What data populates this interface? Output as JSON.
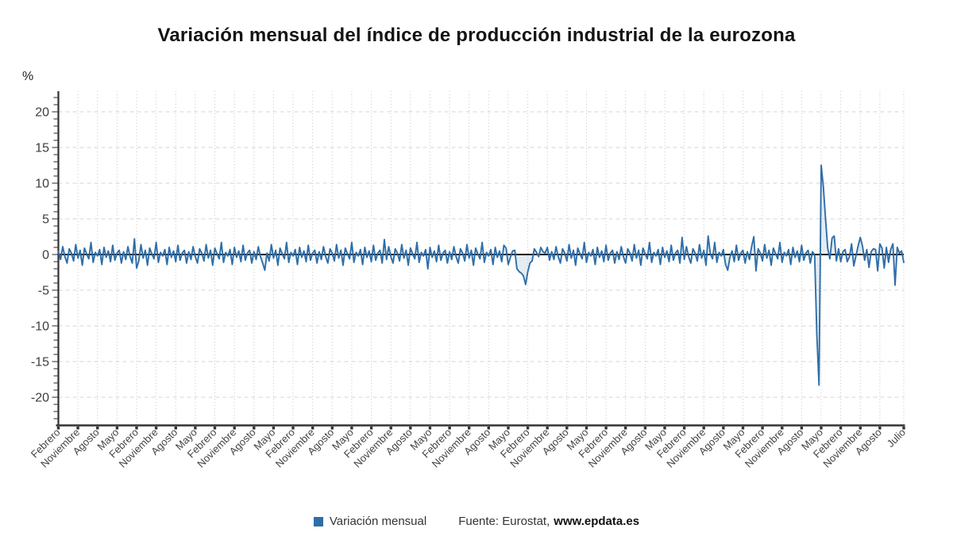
{
  "title": "Variación mensual del índice de producción industrial de la eurozona",
  "legend": {
    "series_label": "Variación mensual"
  },
  "source": {
    "prefix": "Fuente: Eurostat,",
    "site": "www.epdata.es"
  },
  "colors": {
    "line": "#2f6ea7",
    "fill": "#2f6ea7",
    "zero_line": "#1a1a1a",
    "grid_vertical": "#c9c9c9",
    "grid_horizontal": "#d6d6d6",
    "axis": "#333333",
    "tick_label": "#3d3d3d",
    "x_label": "#444444"
  },
  "chart_data": {
    "type": "line",
    "title": "Variación mensual del índice de producción industrial de la eurozona",
    "ylabel": "%",
    "ylim": [
      -24,
      22.9
    ],
    "grid": true,
    "legend_position": "bottom",
    "y_ticks": [
      20,
      15,
      10,
      5,
      0,
      -5,
      -10,
      -15,
      -20
    ],
    "x_tick_labels": [
      {
        "i": 0,
        "label": "Febrero"
      },
      {
        "i": 9,
        "label": "Noviembre"
      },
      {
        "i": 18,
        "label": "Agosto"
      },
      {
        "i": 27,
        "label": "Mayo"
      },
      {
        "i": 36,
        "label": "Febrero"
      },
      {
        "i": 45,
        "label": "Noviembre"
      },
      {
        "i": 54,
        "label": "Agosto"
      },
      {
        "i": 63,
        "label": "Mayo"
      },
      {
        "i": 72,
        "label": "Febrero"
      },
      {
        "i": 81,
        "label": "Noviembre"
      },
      {
        "i": 90,
        "label": "Agosto"
      },
      {
        "i": 99,
        "label": "Mayo"
      },
      {
        "i": 108,
        "label": "Febrero"
      },
      {
        "i": 117,
        "label": "Noviembre"
      },
      {
        "i": 126,
        "label": "Agosto"
      },
      {
        "i": 135,
        "label": "Mayo"
      },
      {
        "i": 144,
        "label": "Febrero"
      },
      {
        "i": 153,
        "label": "Noviembre"
      },
      {
        "i": 162,
        "label": "Agosto"
      },
      {
        "i": 171,
        "label": "Mayo"
      },
      {
        "i": 180,
        "label": "Febrero"
      },
      {
        "i": 189,
        "label": "Noviembre"
      },
      {
        "i": 198,
        "label": "Agosto"
      },
      {
        "i": 207,
        "label": "Mayo"
      },
      {
        "i": 216,
        "label": "Febrero"
      },
      {
        "i": 225,
        "label": "Noviembre"
      },
      {
        "i": 234,
        "label": "Agosto"
      },
      {
        "i": 243,
        "label": "Mayo"
      },
      {
        "i": 252,
        "label": "Febrero"
      },
      {
        "i": 261,
        "label": "Noviembre"
      },
      {
        "i": 270,
        "label": "Agosto"
      },
      {
        "i": 279,
        "label": "Mayo"
      },
      {
        "i": 288,
        "label": "Febrero"
      },
      {
        "i": 297,
        "label": "Noviembre"
      },
      {
        "i": 306,
        "label": "Agosto"
      },
      {
        "i": 315,
        "label": "Mayo"
      },
      {
        "i": 324,
        "label": "Febrero"
      },
      {
        "i": 333,
        "label": "Noviembre"
      },
      {
        "i": 342,
        "label": "Agosto"
      },
      {
        "i": 351,
        "label": "Mayo"
      },
      {
        "i": 360,
        "label": "Febrero"
      },
      {
        "i": 369,
        "label": "Noviembre"
      },
      {
        "i": 378,
        "label": "Agosto"
      },
      {
        "i": 389,
        "label": "Julio"
      }
    ],
    "values": [
      0.4,
      -0.7,
      1.1,
      -0.3,
      -1.2,
      0.8,
      0.2,
      -0.9,
      1.4,
      -0.5,
      0.6,
      -1.5,
      0.9,
      0.1,
      -0.6,
      1.7,
      -1.1,
      0.3,
      -0.2,
      0.7,
      -1.4,
      1.0,
      -0.4,
      0.5,
      -1.0,
      1.3,
      -0.8,
      0.2,
      0.6,
      -1.2,
      0.4,
      -0.7,
      1.1,
      -0.3,
      -1.2,
      2.2,
      -1.9,
      -0.9,
      1.4,
      -0.5,
      0.6,
      -1.5,
      0.9,
      0.1,
      -0.6,
      1.7,
      -1.1,
      0.3,
      -0.2,
      0.7,
      -1.4,
      1.0,
      -0.4,
      0.5,
      -1.0,
      1.3,
      -0.8,
      0.2,
      0.6,
      -1.2,
      0.4,
      -0.7,
      1.1,
      -0.3,
      -1.2,
      0.8,
      0.2,
      -0.9,
      1.4,
      -0.5,
      0.6,
      -1.5,
      0.9,
      0.1,
      -0.6,
      1.7,
      -1.1,
      0.3,
      -0.2,
      0.7,
      -1.4,
      1.0,
      -0.4,
      0.5,
      -1.0,
      1.3,
      -0.8,
      0.2,
      0.6,
      -1.2,
      0.4,
      -0.7,
      1.1,
      -0.3,
      -1.2,
      -2.2,
      0.2,
      -0.9,
      1.4,
      -0.5,
      0.6,
      -1.5,
      0.9,
      0.1,
      -0.6,
      1.7,
      -1.1,
      0.3,
      -0.2,
      0.7,
      -1.4,
      1.0,
      -0.4,
      0.5,
      -1.0,
      1.3,
      -0.8,
      0.2,
      0.6,
      -1.2,
      0.4,
      -0.7,
      1.1,
      -0.3,
      -1.2,
      0.8,
      0.2,
      -0.9,
      1.4,
      -0.5,
      0.6,
      -1.5,
      0.9,
      0.1,
      -0.6,
      1.7,
      -1.1,
      0.3,
      -0.2,
      0.7,
      -1.4,
      1.0,
      -0.4,
      0.5,
      -1.0,
      1.3,
      -0.8,
      0.2,
      0.6,
      -1.2,
      2.1,
      -0.7,
      1.1,
      -0.3,
      -1.2,
      0.8,
      0.2,
      -0.9,
      1.4,
      -0.5,
      0.6,
      -1.5,
      0.9,
      0.1,
      -0.6,
      1.7,
      -1.1,
      0.3,
      -0.2,
      0.7,
      -2.0,
      1.0,
      -0.4,
      0.5,
      -1.0,
      1.3,
      -0.8,
      0.2,
      0.6,
      -1.2,
      0.4,
      -0.7,
      1.1,
      -0.3,
      -1.2,
      0.8,
      0.2,
      -0.9,
      1.4,
      -0.5,
      0.6,
      -1.5,
      0.9,
      0.1,
      -0.6,
      1.7,
      -1.1,
      0.3,
      -0.2,
      0.7,
      -1.4,
      1.0,
      -0.4,
      0.5,
      -1.0,
      1.3,
      0.9,
      -1.4,
      -0.4,
      0.5,
      0.6,
      -2.0,
      -2.4,
      -2.6,
      -3.0,
      -4.2,
      -2.4,
      -1.2,
      -0.9,
      0.8,
      0.3,
      -0.3,
      1.0,
      0.4,
      0.2,
      1.0,
      -0.8,
      0.4,
      -0.7,
      1.1,
      -0.3,
      -1.2,
      0.8,
      0.2,
      -0.9,
      1.4,
      -0.5,
      0.6,
      -1.5,
      0.9,
      0.1,
      -0.6,
      1.7,
      -1.1,
      0.3,
      -0.2,
      0.7,
      -1.4,
      1.0,
      -0.4,
      0.5,
      -1.0,
      1.3,
      -0.8,
      0.2,
      0.6,
      -1.2,
      0.4,
      -0.7,
      1.1,
      -0.3,
      -1.2,
      0.8,
      0.2,
      -0.9,
      1.4,
      -0.5,
      0.6,
      -1.5,
      0.9,
      0.1,
      -0.6,
      1.7,
      -1.1,
      0.3,
      -0.2,
      0.7,
      -1.4,
      1.0,
      -0.4,
      0.5,
      -1.0,
      1.3,
      -0.8,
      0.2,
      0.6,
      -1.2,
      2.4,
      -0.7,
      1.1,
      -0.3,
      -1.2,
      0.8,
      0.2,
      -0.9,
      1.4,
      -0.5,
      0.6,
      -1.5,
      2.6,
      0.1,
      -0.6,
      1.7,
      -1.1,
      0.3,
      -0.2,
      0.7,
      -1.4,
      -2.2,
      -0.4,
      0.5,
      -1.0,
      1.3,
      -0.8,
      0.2,
      0.6,
      -1.2,
      0.4,
      -0.7,
      1.1,
      2.5,
      -2.3,
      0.8,
      0.2,
      -0.9,
      1.4,
      -0.5,
      0.6,
      -1.5,
      0.9,
      0.1,
      -0.6,
      1.7,
      -1.1,
      0.3,
      -0.2,
      0.7,
      -1.4,
      1.0,
      -0.4,
      0.5,
      -1.0,
      1.3,
      -0.8,
      0.2,
      0.6,
      -1.2,
      0.4,
      -0.1,
      -11.2,
      -18.3,
      12.5,
      9.5,
      5.0,
      0.9,
      -0.6,
      2.3,
      2.6,
      -0.9,
      0.8,
      -1.0,
      0.4,
      0.7,
      -1.0,
      -0.3,
      1.5,
      -1.6,
      -0.2,
      1.2,
      2.4,
      1.2,
      -0.8,
      0.7,
      -1.8,
      0.4,
      0.8,
      0.7,
      -2.3,
      1.5,
      0.9,
      -1.9,
      1.0,
      -1.1,
      0.7,
      1.5,
      -4.3,
      1.0,
      0.2,
      0.5,
      -1.1
    ]
  }
}
